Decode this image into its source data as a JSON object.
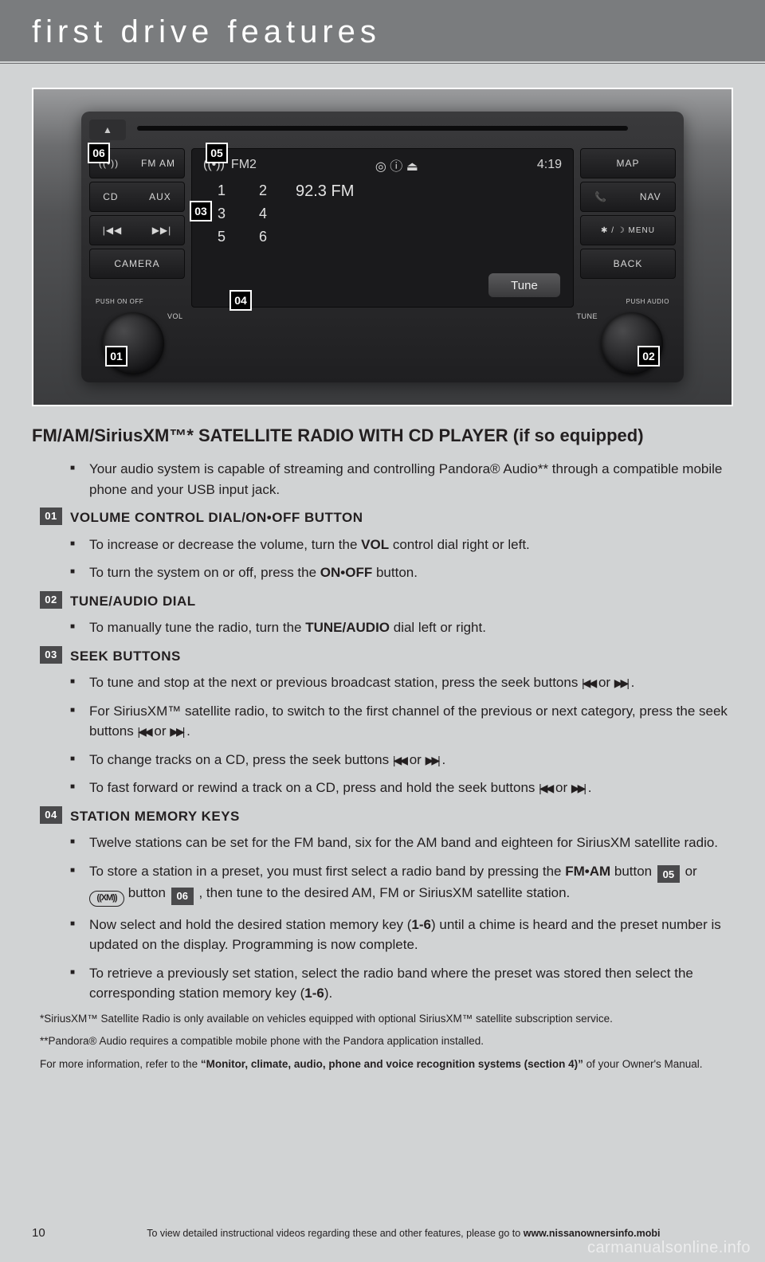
{
  "header": "first drive features",
  "photo": {
    "callouts": {
      "c01": "01",
      "c02": "02",
      "c03": "03",
      "c04": "04",
      "c05": "05",
      "c06": "06"
    },
    "eject": "▲",
    "left_buttons": {
      "xm": "((•))",
      "fmam": "FM AM",
      "cd": "CD",
      "aux": "AUX",
      "prev": "|◀◀",
      "next": "▶▶|",
      "camera": "CAMERA"
    },
    "right_buttons": {
      "map": "MAP",
      "nav": "NAV",
      "nav_icon": "📞",
      "menu": "✱ / ☽  MENU",
      "back": "BACK"
    },
    "knob_labels": {
      "vol": "VOL",
      "onoff": "PUSH\nON OFF",
      "tune": "TUNE",
      "audio": "PUSH\nAUDIO"
    },
    "screen": {
      "band_icon": "((•))",
      "band": "FM2",
      "status": "◎ ⓘ ⏏",
      "clock": "4:19",
      "presets": [
        "1",
        "2",
        "3",
        "4",
        "5",
        "6"
      ],
      "freq": "92.3 FM",
      "tune": "Tune"
    }
  },
  "section_title": "FM/AM/SiriusXM™* SATELLITE RADIO WITH CD PLAYER (if so equipped)",
  "intro_bullet": "Your audio system is capable of streaming and controlling Pandora® Audio** through a compatible mobile phone and your USB input jack.",
  "sec01": {
    "num": "01",
    "head": "VOLUME CONTROL DIAL/ON•OFF BUTTON",
    "b1a": "To increase or decrease the volume, turn the ",
    "b1b": "VOL",
    "b1c": " control dial right or left.",
    "b2a": "To turn the system on or off, press the ",
    "b2b": "ON•OFF",
    "b2c": " button."
  },
  "sec02": {
    "num": "02",
    "head": "TUNE/AUDIO DIAL",
    "b1a": "To manually tune the radio, turn the ",
    "b1b": "TUNE/AUDIO",
    "b1c": " dial left or right."
  },
  "sec03": {
    "num": "03",
    "head": "SEEK BUTTONS",
    "b1": "To tune and stop at the next or previous broadcast station, press the seek buttons ",
    "b2": "For SiriusXM™ satellite radio, to switch to the first channel of the previous or next category, press the seek buttons ",
    "b3": "To change tracks on a CD, press the seek buttons ",
    "b4": "To fast forward or rewind a track on a CD, press and hold the seek buttons ",
    "or": " or ",
    "prev": "|◀◀",
    "next": "▶▶|",
    "dot": " ."
  },
  "sec04": {
    "num": "04",
    "head": "STATION MEMORY KEYS",
    "b1": "Twelve stations can be set for the FM band, six for the AM band and eighteen for SiriusXM satellite radio.",
    "b2a": "To store a station in a preset, you must first select a radio band by pressing the ",
    "b2b": "FM•AM",
    "b2c": " button ",
    "b2d": "05",
    "b2e": " or ",
    "b2f": "((XM))",
    "b2g": " button ",
    "b2h": "06",
    "b2i": " , then tune to the desired AM, FM or SiriusXM satellite station.",
    "b3a": "Now select and hold the desired station memory key (",
    "b3b": "1-6",
    "b3c": ") until a chime is heard and the preset number is updated on the display. Programming is now complete.",
    "b4a": "To retrieve a previously set station, select the radio band where the preset was stored then select the corresponding station memory key (",
    "b4b": "1-6",
    "b4c": ")."
  },
  "foot1": "*SiriusXM™ Satellite Radio is only available on vehicles equipped with optional SiriusXM™ satellite subscription service.",
  "foot2": "**Pandora® Audio requires a compatible mobile phone with the Pandora application installed.",
  "foot3a": "For more information, refer to the ",
  "foot3b": "“Monitor, climate, audio, phone and voice recognition systems (section 4)”",
  "foot3c": " of your Owner's Manual.",
  "page_num": "10",
  "bottom_a": "To view detailed instructional videos regarding these and other features, please go to ",
  "bottom_b": "www.nissanownersinfo.mobi",
  "watermark": "carmanualsonline.info"
}
